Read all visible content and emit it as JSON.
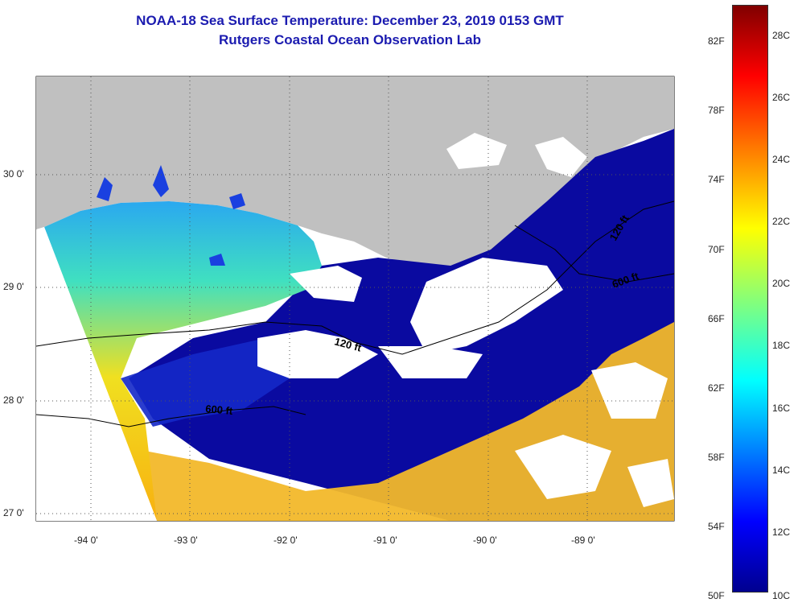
{
  "title": "NOAA-18 Sea Surface Temperature:  December 23, 2019 0153 GMT",
  "subtitle": "Rutgers Coastal Ocean Observation Lab",
  "axes": {
    "lat_labels": [
      "30 0'",
      "29 0'",
      "28 0'",
      "27 0'"
    ],
    "lon_labels": [
      "-94 0'",
      "-93 0'",
      "-92 0'",
      "-91 0'",
      "-90 0'",
      "-89 0'"
    ],
    "lat_range": [
      26.95,
      30.85
    ],
    "lon_range": [
      -94.55,
      -88.2
    ]
  },
  "contours": [
    "120 ft",
    "120 ft",
    "600 ft",
    "600 ft"
  ],
  "colorbar": {
    "fahrenheit": [
      "82F",
      "78F",
      "74F",
      "70F",
      "66F",
      "62F",
      "58F",
      "54F",
      "50F"
    ],
    "celsius": [
      "28C",
      "26C",
      "24C",
      "22C",
      "20C",
      "18C",
      "16C",
      "14C",
      "12C",
      "10C"
    ],
    "range_c": [
      10,
      29.5
    ]
  },
  "colors": {
    "land": "#c0c0c0",
    "cloud": "#ffffff",
    "title": "#1b1bb0",
    "cold": "#00008f",
    "warm": "#800000"
  }
}
